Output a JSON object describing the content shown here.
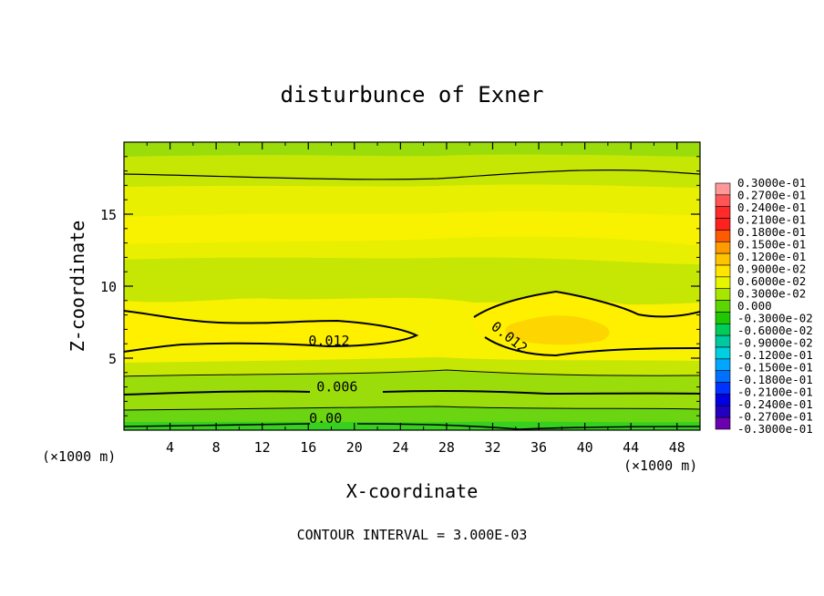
{
  "chart_data": {
    "type": "heatmap",
    "title": "disturbunce of Exner",
    "xlabel": "X-coordinate",
    "ylabel": "Z-coordinate",
    "x_unit": "(×1000 m)",
    "x_unit_right": "(×1000 m)",
    "footer": "CONTOUR INTERVAL = 3.000E-03",
    "xlim": [
      0,
      50
    ],
    "ylim": [
      0,
      20
    ],
    "x_ticks": [
      4,
      8,
      12,
      16,
      20,
      24,
      28,
      32,
      36,
      40,
      44,
      48
    ],
    "y_ticks": [
      5,
      10,
      15
    ],
    "contour_labels": [
      {
        "text": "0.012",
        "x": 17.8,
        "y": 5.9
      },
      {
        "text": "0.012",
        "x": 33.2,
        "y": 6.2
      },
      {
        "text": "0.006",
        "x": 18.5,
        "y": 2.7
      },
      {
        "text": "0.00",
        "x": 17.5,
        "y": 0.5
      }
    ],
    "colorbar": {
      "levels": [
        "0.3000e-01",
        "0.2700e-01",
        "0.2400e-01",
        "0.2100e-01",
        "0.1800e-01",
        "0.1500e-01",
        "0.1200e-01",
        "0.9000e-02",
        "0.6000e-02",
        "0.3000e-02",
        "0.000",
        "-0.3000e-02",
        "-0.6000e-02",
        "-0.9000e-02",
        "-0.1200e-01",
        "-0.1500e-01",
        "-0.1800e-01",
        "-0.2100e-01",
        "-0.2400e-01",
        "-0.2700e-01",
        "-0.3000e-01"
      ],
      "colors": [
        "#ff9999",
        "#ff5555",
        "#ff2a2a",
        "#ff2020",
        "#ff5a00",
        "#ff9b00",
        "#ffc400",
        "#ffe500",
        "#e6f500",
        "#a8e600",
        "#5cd600",
        "#1fc800",
        "#00cc5a",
        "#00c8a0",
        "#00cfe0",
        "#00a6ff",
        "#0070ff",
        "#0033ff",
        "#0000e0",
        "#2200c0",
        "#6a00b0"
      ]
    },
    "fill_colors": {
      "c1": "#37d01e",
      "c2": "#6cd512",
      "c3": "#9add0a",
      "c4": "#c6e604",
      "c5": "#e8ef00",
      "c6": "#f8f100",
      "c7": "#fff000",
      "c8": "#fdd500"
    }
  }
}
